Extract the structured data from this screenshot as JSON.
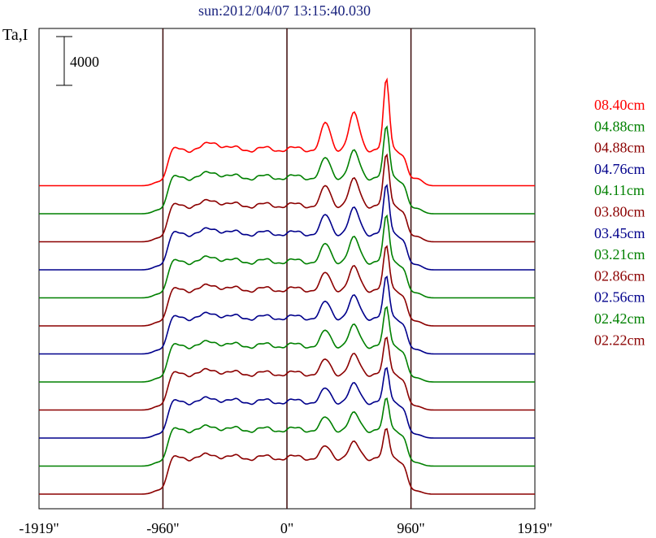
{
  "chart_data": {
    "type": "line",
    "title": "sun:2012/04/07 13:15:40.030",
    "ylabel": "Ta,I",
    "scale_bar_label": "4000",
    "xlim": [
      -1919,
      1919
    ],
    "x_ticks": [
      {
        "value": -1919,
        "label": "-1919\""
      },
      {
        "value": -960,
        "label": "-960\""
      },
      {
        "value": 0,
        "label": "0\""
      },
      {
        "value": 960,
        "label": "960\""
      },
      {
        "value": 1919,
        "label": "1919\""
      }
    ],
    "vertical_lines_at": [
      -960,
      0,
      960
    ],
    "grid": false,
    "legend_position": "right",
    "series": [
      {
        "name": "02.22cm",
        "color": "#8b0000",
        "offset_level": 0,
        "peak": 0.55
      },
      {
        "name": "02.42cm",
        "color": "#008000",
        "offset_level": 1,
        "peak": 0.6
      },
      {
        "name": "02.56cm",
        "color": "#00008b",
        "offset_level": 2,
        "peak": 0.65
      },
      {
        "name": "02.86cm",
        "color": "#8b0000",
        "offset_level": 3,
        "peak": 0.7
      },
      {
        "name": "03.21cm",
        "color": "#008000",
        "offset_level": 4,
        "peak": 0.75
      },
      {
        "name": "03.45cm",
        "color": "#00008b",
        "offset_level": 5,
        "peak": 0.8
      },
      {
        "name": "03.80cm",
        "color": "#8b0000",
        "offset_level": 6,
        "peak": 0.85
      },
      {
        "name": "04.11cm",
        "color": "#008000",
        "offset_level": 7,
        "peak": 0.9
      },
      {
        "name": "04.76cm",
        "color": "#00008b",
        "offset_level": 8,
        "peak": 0.95
      },
      {
        "name": "04.88cm",
        "color": "#8b0000",
        "offset_level": 9,
        "peak": 1.0
      },
      {
        "name": "04.88cm",
        "color": "#008000",
        "offset_level": 10,
        "peak": 1.0
      },
      {
        "name": "08.40cm",
        "color": "#ff0000",
        "offset_level": 11,
        "peak": 1.4
      }
    ]
  }
}
